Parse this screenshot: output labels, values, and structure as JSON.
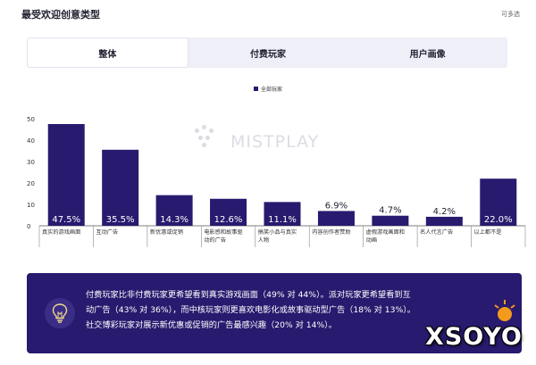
{
  "header": {
    "title": "最受欢迎创意类型",
    "multi_select": "可多选"
  },
  "tabs": [
    {
      "label": "整体",
      "active": true
    },
    {
      "label": "付费玩家",
      "active": false
    },
    {
      "label": "用户画像",
      "active": false
    }
  ],
  "watermark": "MISTPLAY",
  "chart_data": {
    "type": "bar",
    "legend": [
      "全部玩家"
    ],
    "legend_position": "top",
    "categories": [
      "真实的游戏画面",
      "互动广告",
      "新优惠或促销",
      "电影感和故事驱动的广告",
      "搞笑小品与真实人物",
      "内容创作者赞助",
      "虚假游戏画面和动画",
      "名人代言广告",
      "以上都不是"
    ],
    "category_lines": [
      [
        "真实的游戏画面"
      ],
      [
        "互动广告"
      ],
      [
        "新优惠或促销"
      ],
      [
        "电影感和故事驱",
        "动的广告"
      ],
      [
        "搞笑小品与真实",
        "人物"
      ],
      [
        "内容创作者赞助"
      ],
      [
        "虚假游戏画面和",
        "动画"
      ],
      [
        "名人代言广告"
      ],
      [
        "以上都不是"
      ]
    ],
    "series": [
      {
        "name": "全部玩家",
        "values": [
          47.5,
          35.5,
          14.3,
          12.6,
          11.1,
          6.9,
          4.7,
          4.2,
          22.0
        ]
      }
    ],
    "data_labels": [
      "47.5%",
      "35.5%",
      "14.3%",
      "12.6%",
      "11.1%",
      "6.9%",
      "4.7%",
      "4.2%",
      "22.0%"
    ],
    "label_inside": [
      true,
      true,
      true,
      true,
      true,
      false,
      false,
      false,
      true
    ],
    "y_ticks": [
      "0",
      "10",
      "20",
      "30",
      "40",
      "50"
    ],
    "ylim": [
      0,
      50
    ],
    "bar_color": "#281a6e",
    "grid": false
  },
  "callout": {
    "lines": [
      "付费玩家比非付费玩家更希望看到真实游戏画面（49% 对 44%）。派对玩家更希望看到互",
      "动广告（43% 对 36%），而中核玩家则更喜欢电影化或故事驱动型广告（18% 对 13%）。",
      "社交博彩玩家对展示新优惠或促销的广告最感兴趣（20% 对 14%）。"
    ],
    "background": "#281a6e",
    "icon": "lightbulb-icon"
  },
  "brand": "XSOYO",
  "colors": {
    "accent": "#281a6e",
    "tab_bg": "#eeeff7"
  }
}
